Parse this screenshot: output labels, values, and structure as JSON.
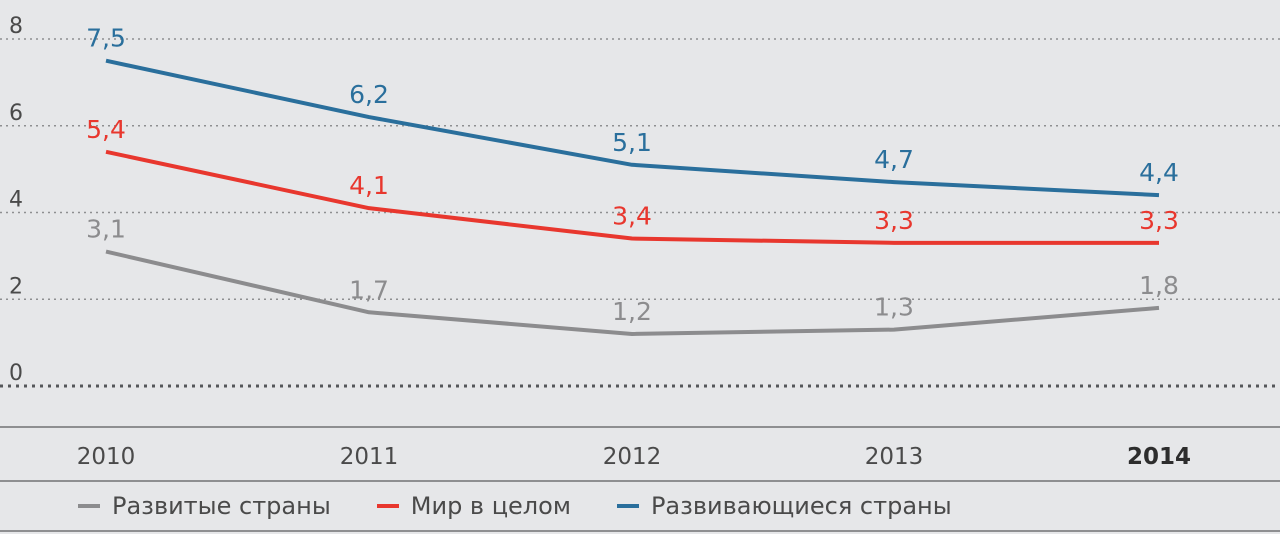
{
  "chart_data": {
    "type": "line",
    "categories": [
      "2010",
      "2011",
      "2012",
      "2013",
      "2014"
    ],
    "highlight_category": "2014",
    "y_ticks": [
      "0",
      "2",
      "4",
      "6",
      "8"
    ],
    "ylim": [
      0,
      8
    ],
    "grid": true,
    "legend_position": "bottom",
    "series": [
      {
        "name": "Развитые страны",
        "color": "#8c8c8e",
        "values": [
          3.1,
          1.7,
          1.2,
          1.3,
          1.8
        ],
        "labels": [
          "3,1",
          "1,7",
          "1,2",
          "1,3",
          "1,8"
        ]
      },
      {
        "name": "Мир в целом",
        "color": "#e8372e",
        "values": [
          5.4,
          4.1,
          3.4,
          3.3,
          3.3
        ],
        "labels": [
          "5,4",
          "4,1",
          "3,4",
          "3,3",
          "3,3"
        ]
      },
      {
        "name": "Развивающиеся страны",
        "color": "#2a6f9c",
        "values": [
          7.5,
          6.2,
          5.1,
          4.7,
          4.4
        ],
        "labels": [
          "7,5",
          "6,2",
          "5,1",
          "4,7",
          "4,4"
        ]
      }
    ]
  }
}
